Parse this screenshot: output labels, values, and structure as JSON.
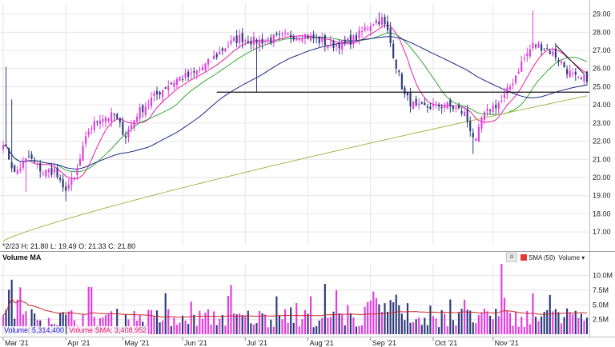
{
  "chart_data": {
    "type": "candlestick",
    "price_axis": {
      "ticks": [
        17,
        18,
        19,
        20,
        21,
        22,
        23,
        24,
        25,
        26,
        27,
        28,
        29
      ],
      "ylim": [
        16.3,
        29.6
      ]
    },
    "volume_axis": {
      "ticks": [
        "2.5M",
        "5.0M",
        "7.5M",
        "10.0M"
      ],
      "tick_values": [
        2.5,
        5,
        7.5,
        10
      ],
      "ylim": [
        0,
        12
      ],
      "unit": "M"
    },
    "x_ticks": [
      "Mar '21",
      "Apr '21",
      "May '21",
      "Jun '21",
      "Jul '21",
      "Aug '21",
      "Sep '21",
      "Oct '21",
      "Nov '21"
    ],
    "x_tick_index": [
      0,
      22,
      42,
      63,
      85,
      107,
      129,
      151,
      172
    ],
    "info": "*2/23  H: 21.80  L: 19.49  O: 21.33  C: 21.80",
    "volume_title": "Volume MA",
    "volume_readout": {
      "volume": "Volume: 5,314,400",
      "sma": "Volume SMA: 3,408,952"
    },
    "legend": {
      "back": "⯐",
      "sma": "SMA (50)",
      "volume": "Volume"
    },
    "support_level": 24.7,
    "trendline": [
      [
        194,
        27.3
      ],
      [
        204,
        25.7
      ]
    ],
    "anchors": [
      [
        0,
        22.0
      ],
      [
        4,
        20.2
      ],
      [
        9,
        21.1
      ],
      [
        14,
        20.3
      ],
      [
        18,
        20.4
      ],
      [
        21,
        19.3
      ],
      [
        25,
        19.9
      ],
      [
        30,
        22.6
      ],
      [
        34,
        23.3
      ],
      [
        39,
        23.4
      ],
      [
        43,
        22.3
      ],
      [
        47,
        23.5
      ],
      [
        52,
        24.3
      ],
      [
        57,
        25.0
      ],
      [
        62,
        25.5
      ],
      [
        66,
        25.6
      ],
      [
        72,
        26.3
      ],
      [
        78,
        27.2
      ],
      [
        83,
        27.7
      ],
      [
        88,
        27.5
      ],
      [
        94,
        27.6
      ],
      [
        100,
        27.8
      ],
      [
        105,
        27.9
      ],
      [
        110,
        27.6
      ],
      [
        115,
        27.3
      ],
      [
        120,
        27.4
      ],
      [
        124,
        27.7
      ],
      [
        127,
        28.2
      ],
      [
        130,
        28.6
      ],
      [
        133,
        28.7
      ],
      [
        135,
        28.0
      ],
      [
        137,
        26.8
      ],
      [
        139,
        25.6
      ],
      [
        141,
        24.5
      ],
      [
        145,
        23.8
      ],
      [
        150,
        23.9
      ],
      [
        155,
        24.0
      ],
      [
        159,
        23.8
      ],
      [
        162,
        23.5
      ],
      [
        164,
        22.7
      ],
      [
        166,
        21.9
      ],
      [
        168,
        23.2
      ],
      [
        171,
        23.8
      ],
      [
        175,
        24.2
      ],
      [
        178,
        25.0
      ],
      [
        182,
        26.3
      ],
      [
        186,
        27.3
      ],
      [
        190,
        27.2
      ],
      [
        194,
        26.7
      ],
      [
        198,
        25.9
      ],
      [
        202,
        25.3
      ],
      [
        205,
        25.5
      ]
    ],
    "moving_averages": [
      {
        "period": 10,
        "color": "#e91ea3"
      },
      {
        "period": 20,
        "color": "#37a63a"
      },
      {
        "period": 50,
        "color": "#1c2a8a"
      },
      {
        "period": 200,
        "color": "#a9b64a"
      }
    ],
    "colors": {
      "up": "#e23ce0",
      "down": "#2c3a78",
      "grid": "#e6e6e6",
      "vol_sma": "#c62828",
      "support": "#111111"
    }
  }
}
